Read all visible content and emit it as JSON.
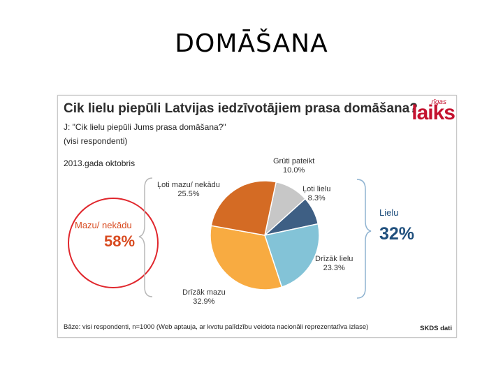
{
  "slide": {
    "title": "DOMĀŠANA"
  },
  "chart": {
    "title": "Cik lielu piepūli Latvijas iedzīvotājiem prasa domāšana?",
    "question": "J: \"Cik lielu piepūli Jums prasa domāšana?\"",
    "audience": "(visi respondenti)",
    "period": "2013.gada oktobris",
    "logo_small": "rīgas",
    "logo_main": "laiks",
    "footer_note": "Bāze: visi respondenti, n=1000 (Web aptauja, ar kvotu palīdzību veidota nacionāli reprezentatīva izlase)",
    "footer_source": "SKDS dati",
    "group_left_label": "Mazu/ nekādu",
    "group_left_value": "58%",
    "group_right_label": "Lielu",
    "group_right_value": "32%",
    "colors": {
      "title": "#2d2d2d",
      "accent_red": "#e0262c",
      "accent_orange": "#d84a1f",
      "accent_blue": "#1f4f7d"
    }
  },
  "chart_data": {
    "type": "pie",
    "slices": [
      {
        "label": "Grūti pateikt",
        "value": 10.0,
        "display": "10.0%",
        "color": "#c7c7c7"
      },
      {
        "label": "Ļoti lielu",
        "value": 8.3,
        "display": "8.3%",
        "color": "#3e5f84"
      },
      {
        "label": "Drīzāk lielu",
        "value": 23.3,
        "display": "23.3%",
        "color": "#83c3d7"
      },
      {
        "label": "Drīzāk mazu",
        "value": 32.9,
        "display": "32.9%",
        "color": "#f8ab41"
      },
      {
        "label": "Ļoti mazu/ nekādu",
        "value": 25.5,
        "display": "25.5%",
        "color": "#d46b24"
      }
    ]
  }
}
